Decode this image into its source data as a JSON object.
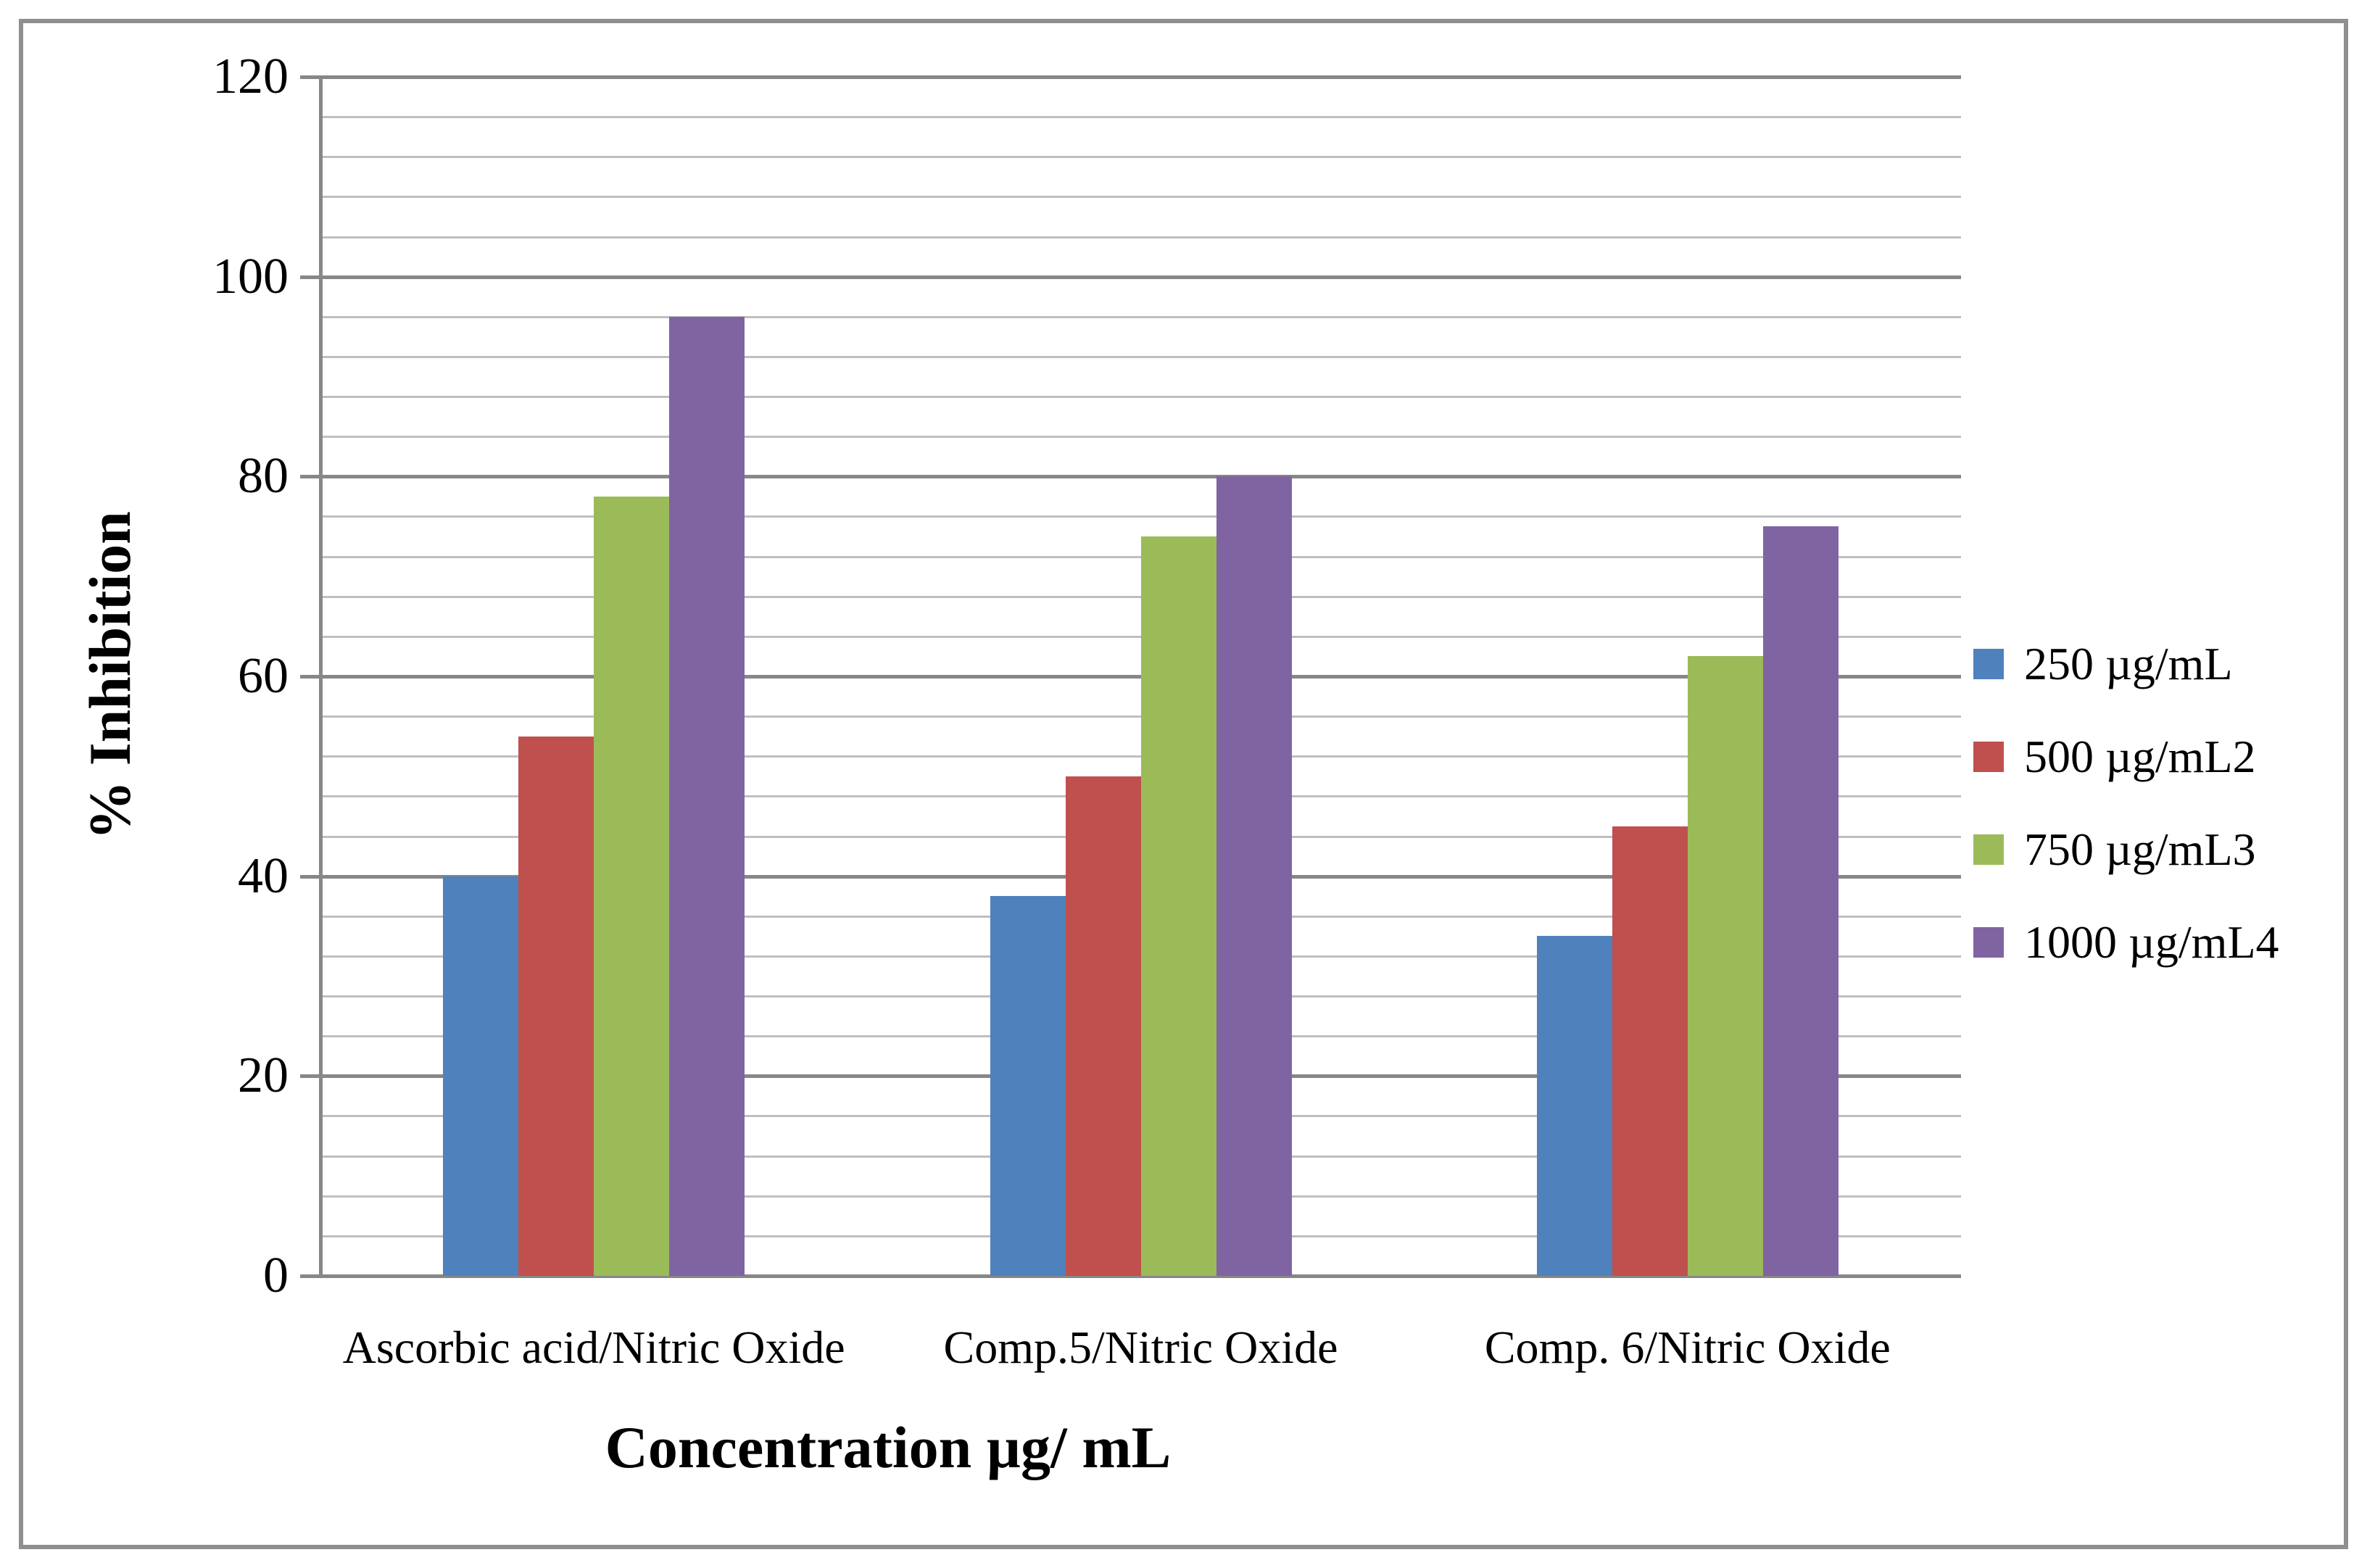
{
  "figure": {
    "background": "#FFFFFF",
    "border_color": "#8F8F8F"
  },
  "chart_data": {
    "type": "bar",
    "title": "",
    "categories": [
      "Ascorbic acid/Nitric Oxide",
      "Comp.5/Nitric Oxide",
      "Comp. 6/Nitric Oxide"
    ],
    "series": [
      {
        "name": "250 µg/mL",
        "color": "#4F81BD",
        "values": [
          40,
          38,
          34
        ]
      },
      {
        "name": "500 µg/mL2",
        "color": "#C0504D",
        "values": [
          54,
          50,
          45
        ]
      },
      {
        "name": "750 µg/mL3",
        "color": "#9BBB59",
        "values": [
          78,
          74,
          62
        ]
      },
      {
        "name": "1000 µg/mL4",
        "color": "#8064A2",
        "values": [
          96,
          80,
          75
        ]
      }
    ],
    "xlabel": "Concentration µg/ mL",
    "ylabel": "% Inhibition",
    "ylim": [
      0,
      120
    ],
    "y_major_unit": 20,
    "y_minor_unit": 4,
    "y_tick_labels": [
      "0",
      "20",
      "40",
      "60",
      "80",
      "100",
      "120"
    ],
    "grid": "horizontal major+minor",
    "legend_position": "right",
    "colors": {
      "major_gridline": "#878787",
      "minor_gridline": "#BFBFBF",
      "axis_line": "#878787",
      "text": "#000000"
    }
  }
}
